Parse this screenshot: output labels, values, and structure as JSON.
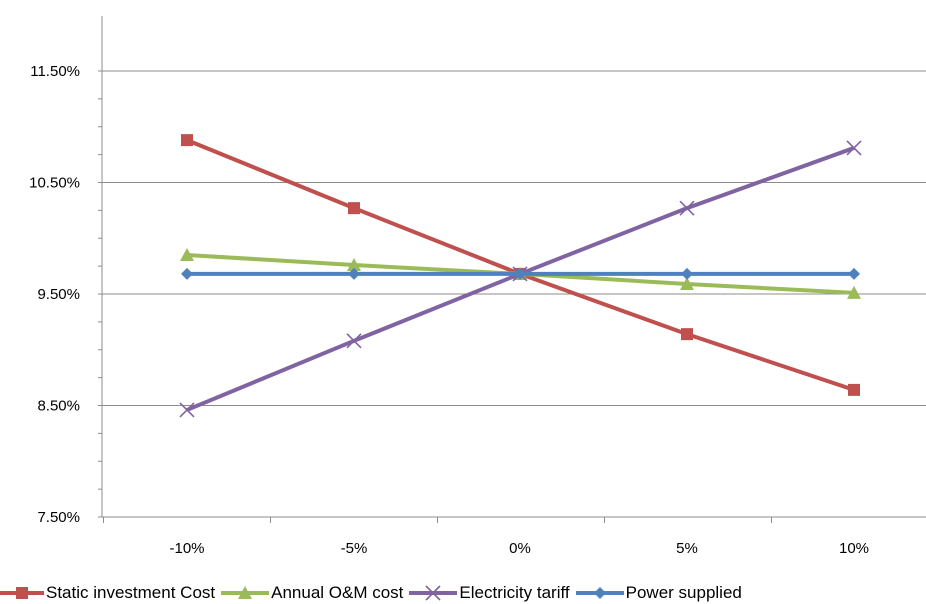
{
  "chart_data": {
    "type": "line",
    "title": "",
    "xlabel": "",
    "ylabel": "",
    "categories": [
      "-10%",
      "-5%",
      "0%",
      "5%",
      "10%"
    ],
    "y_ticks": [
      "7.50%",
      "8.50%",
      "9.50%",
      "10.50%",
      "11.50%"
    ],
    "ylim": [
      7.5,
      11.5
    ],
    "grid": "horizontal",
    "legend_position": "bottom",
    "series": [
      {
        "name": "Static investment Cost",
        "color": "#c0504d",
        "marker": "square",
        "values": [
          10.88,
          10.27,
          9.68,
          9.14,
          8.64
        ]
      },
      {
        "name": "Annual O&M cost",
        "color": "#9bbb59",
        "marker": "triangle",
        "values": [
          9.85,
          9.76,
          9.68,
          9.59,
          9.51
        ]
      },
      {
        "name": "Electricity tariff",
        "color": "#8064a2",
        "marker": "x",
        "values": [
          8.46,
          9.08,
          9.68,
          10.27,
          10.81
        ]
      },
      {
        "name": "Power supplied",
        "color": "#4f81bd",
        "marker": "diamond",
        "values": [
          9.68,
          9.68,
          9.68,
          9.68,
          9.68
        ]
      }
    ]
  }
}
